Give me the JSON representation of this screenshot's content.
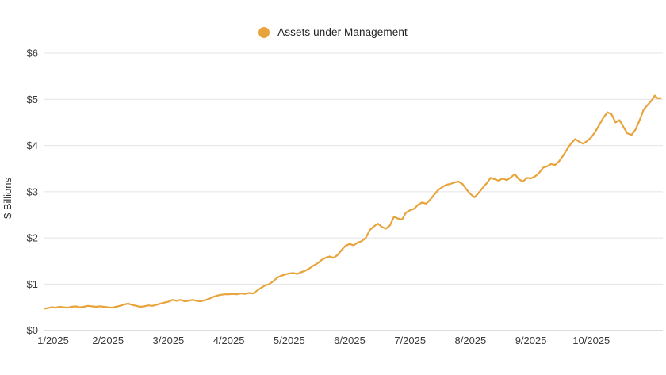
{
  "legend": {
    "label": "Assets under Management"
  },
  "colors": {
    "line": "#E9A33B",
    "legend_dot": "#E9A33B",
    "grid": "#E4E4E4",
    "zero_axis": "#D2D2D2",
    "text": "#3A3A3A"
  },
  "chart_data": {
    "type": "line",
    "title": "",
    "xlabel": "",
    "ylabel": "$ Billions",
    "ylim": [
      0,
      6
    ],
    "grid": "horizontal",
    "legend_position": "top-center",
    "y_ticks": [
      {
        "label": "$0",
        "value": 0
      },
      {
        "label": "$1",
        "value": 1
      },
      {
        "label": "$2",
        "value": 2
      },
      {
        "label": "$3",
        "value": 3
      },
      {
        "label": "$4",
        "value": 4
      },
      {
        "label": "$5",
        "value": 5
      },
      {
        "label": "$6",
        "value": 6
      }
    ],
    "x_ticks": [
      "1/2025",
      "2/2025",
      "3/2025",
      "4/2025",
      "5/2025",
      "6/2025",
      "7/2025",
      "8/2025",
      "9/2025",
      "10/2025"
    ],
    "x_unit": "months since 1/2025",
    "series": [
      {
        "name": "Assets under Management",
        "color": "#E9A33B",
        "x_months": [
          -0.04,
          0,
          0.067,
          0.133,
          0.2,
          0.267,
          0.333,
          0.4,
          0.467,
          0.533,
          0.6,
          0.667,
          0.733,
          0.8,
          0.867,
          0.933,
          1,
          1.067,
          1.133,
          1.2,
          1.267,
          1.333,
          1.4,
          1.467,
          1.533,
          1.6,
          1.667,
          1.733,
          1.8,
          1.867,
          1.933,
          2,
          2.067,
          2.133,
          2.2,
          2.267,
          2.333,
          2.4,
          2.467,
          2.533,
          2.6,
          2.667,
          2.733,
          2.8,
          2.867,
          2.933,
          3,
          3.067,
          3.133,
          3.2,
          3.267,
          3.333,
          3.4,
          3.467,
          3.533,
          3.6,
          3.667,
          3.733,
          3.8,
          3.867,
          3.933,
          4,
          4.067,
          4.133,
          4.2,
          4.267,
          4.333,
          4.4,
          4.467,
          4.533,
          4.6,
          4.667,
          4.733,
          4.8,
          4.867,
          4.933,
          5,
          5.067,
          5.133,
          5.2,
          5.267,
          5.333,
          5.4,
          5.467,
          5.533,
          5.6,
          5.667,
          5.733,
          5.8,
          5.867,
          5.933,
          6,
          6.067,
          6.133,
          6.2,
          6.267,
          6.333,
          6.4,
          6.467,
          6.533,
          6.6,
          6.667,
          6.733,
          6.8,
          6.867,
          6.933,
          7,
          7.067,
          7.133,
          7.2,
          7.267,
          7.333,
          7.4,
          7.467,
          7.533,
          7.6,
          7.667,
          7.733,
          7.8,
          7.867,
          7.933,
          8,
          8.067,
          8.133,
          8.2,
          8.267,
          8.333,
          8.4,
          8.467,
          8.533,
          8.6,
          8.667,
          8.733,
          8.8,
          8.867,
          8.933,
          9,
          9.067,
          9.133,
          9.2,
          9.267,
          9.333,
          9.4,
          9.467,
          9.533,
          9.6,
          9.667,
          9.733,
          9.8,
          9.867,
          9.933,
          10,
          10.05,
          10.1,
          10.15
        ],
        "values": [
          0.47,
          0.48,
          0.5,
          0.49,
          0.51,
          0.5,
          0.49,
          0.51,
          0.52,
          0.5,
          0.51,
          0.53,
          0.52,
          0.51,
          0.52,
          0.51,
          0.5,
          0.49,
          0.51,
          0.53,
          0.56,
          0.58,
          0.55,
          0.53,
          0.51,
          0.52,
          0.54,
          0.53,
          0.55,
          0.58,
          0.6,
          0.62,
          0.66,
          0.64,
          0.66,
          0.63,
          0.64,
          0.66,
          0.64,
          0.63,
          0.65,
          0.68,
          0.72,
          0.75,
          0.77,
          0.78,
          0.78,
          0.79,
          0.78,
          0.8,
          0.79,
          0.81,
          0.8,
          0.86,
          0.92,
          0.97,
          1.0,
          1.06,
          1.14,
          1.18,
          1.21,
          1.23,
          1.24,
          1.22,
          1.26,
          1.29,
          1.34,
          1.4,
          1.45,
          1.52,
          1.57,
          1.6,
          1.57,
          1.63,
          1.74,
          1.83,
          1.87,
          1.84,
          1.9,
          1.93,
          2.0,
          2.17,
          2.25,
          2.31,
          2.24,
          2.2,
          2.27,
          2.46,
          2.42,
          2.4,
          2.55,
          2.6,
          2.63,
          2.72,
          2.77,
          2.74,
          2.83,
          2.94,
          3.04,
          3.1,
          3.15,
          3.17,
          3.2,
          3.22,
          3.17,
          3.05,
          2.95,
          2.88,
          2.97,
          3.08,
          3.18,
          3.3,
          3.27,
          3.24,
          3.29,
          3.25,
          3.31,
          3.38,
          3.27,
          3.22,
          3.3,
          3.29,
          3.33,
          3.4,
          3.52,
          3.55,
          3.6,
          3.58,
          3.66,
          3.78,
          3.92,
          4.05,
          4.14,
          4.08,
          4.04,
          4.1,
          4.18,
          4.3,
          4.45,
          4.6,
          4.72,
          4.68,
          4.5,
          4.55,
          4.4,
          4.26,
          4.23,
          4.35,
          4.55,
          4.78,
          4.88,
          4.98,
          5.08,
          5.02,
          5.03
        ]
      }
    ]
  }
}
